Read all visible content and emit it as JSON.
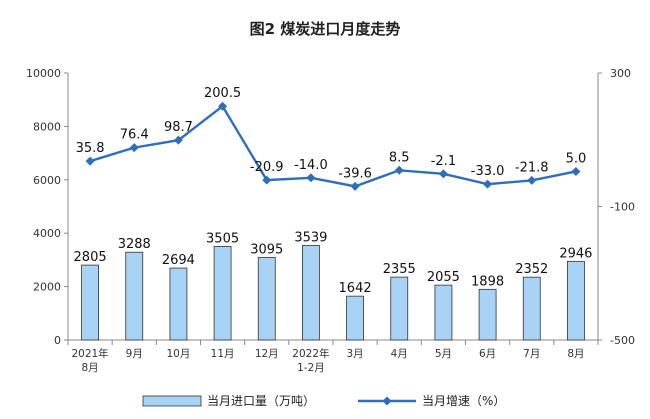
{
  "chart_data": {
    "type": "bar+line",
    "title": "图2 煤炭进口月度走势",
    "categories": [
      "2021年8月",
      "9月",
      "10月",
      "11月",
      "12月",
      "2022年1-2月",
      "3月",
      "4月",
      "5月",
      "6月",
      "7月",
      "8月"
    ],
    "category_lines": [
      [
        "2021年",
        "8月"
      ],
      [
        "9月"
      ],
      [
        "10月"
      ],
      [
        "11月"
      ],
      [
        "12月"
      ],
      [
        "2022年",
        "1-2月"
      ],
      [
        "3月"
      ],
      [
        "4月"
      ],
      [
        "5月"
      ],
      [
        "6月"
      ],
      [
        "7月"
      ],
      [
        "8月"
      ]
    ],
    "series": [
      {
        "name": "当月进口量（万吨）",
        "type": "bar",
        "axis": "left",
        "color": "#a8d3f5",
        "values": [
          2805,
          3288,
          2694,
          3505,
          3095,
          3539,
          1642,
          2355,
          2055,
          1898,
          2352,
          2946
        ]
      },
      {
        "name": "当月增速（%）",
        "type": "line",
        "axis": "right",
        "color": "#2f6eba",
        "values": [
          35.8,
          76.4,
          98.7,
          200.5,
          -20.9,
          -14.0,
          -39.6,
          8.5,
          -2.1,
          -33.0,
          -21.8,
          5.0
        ],
        "labels": [
          "35.8",
          "76.4",
          "98.7",
          "200.5",
          "-20.9",
          "-14.0",
          "-39.6",
          "8.5",
          "-2.1",
          "-33.0",
          "-21.8",
          "5.0"
        ]
      }
    ],
    "y_left": {
      "min": 0,
      "max": 10000,
      "ticks": [
        0,
        2000,
        4000,
        6000,
        8000,
        10000
      ]
    },
    "y_right": {
      "min": -500,
      "max": 300,
      "ticks": [
        -500,
        -100,
        300
      ]
    },
    "grid": false,
    "legend_position": "bottom"
  }
}
